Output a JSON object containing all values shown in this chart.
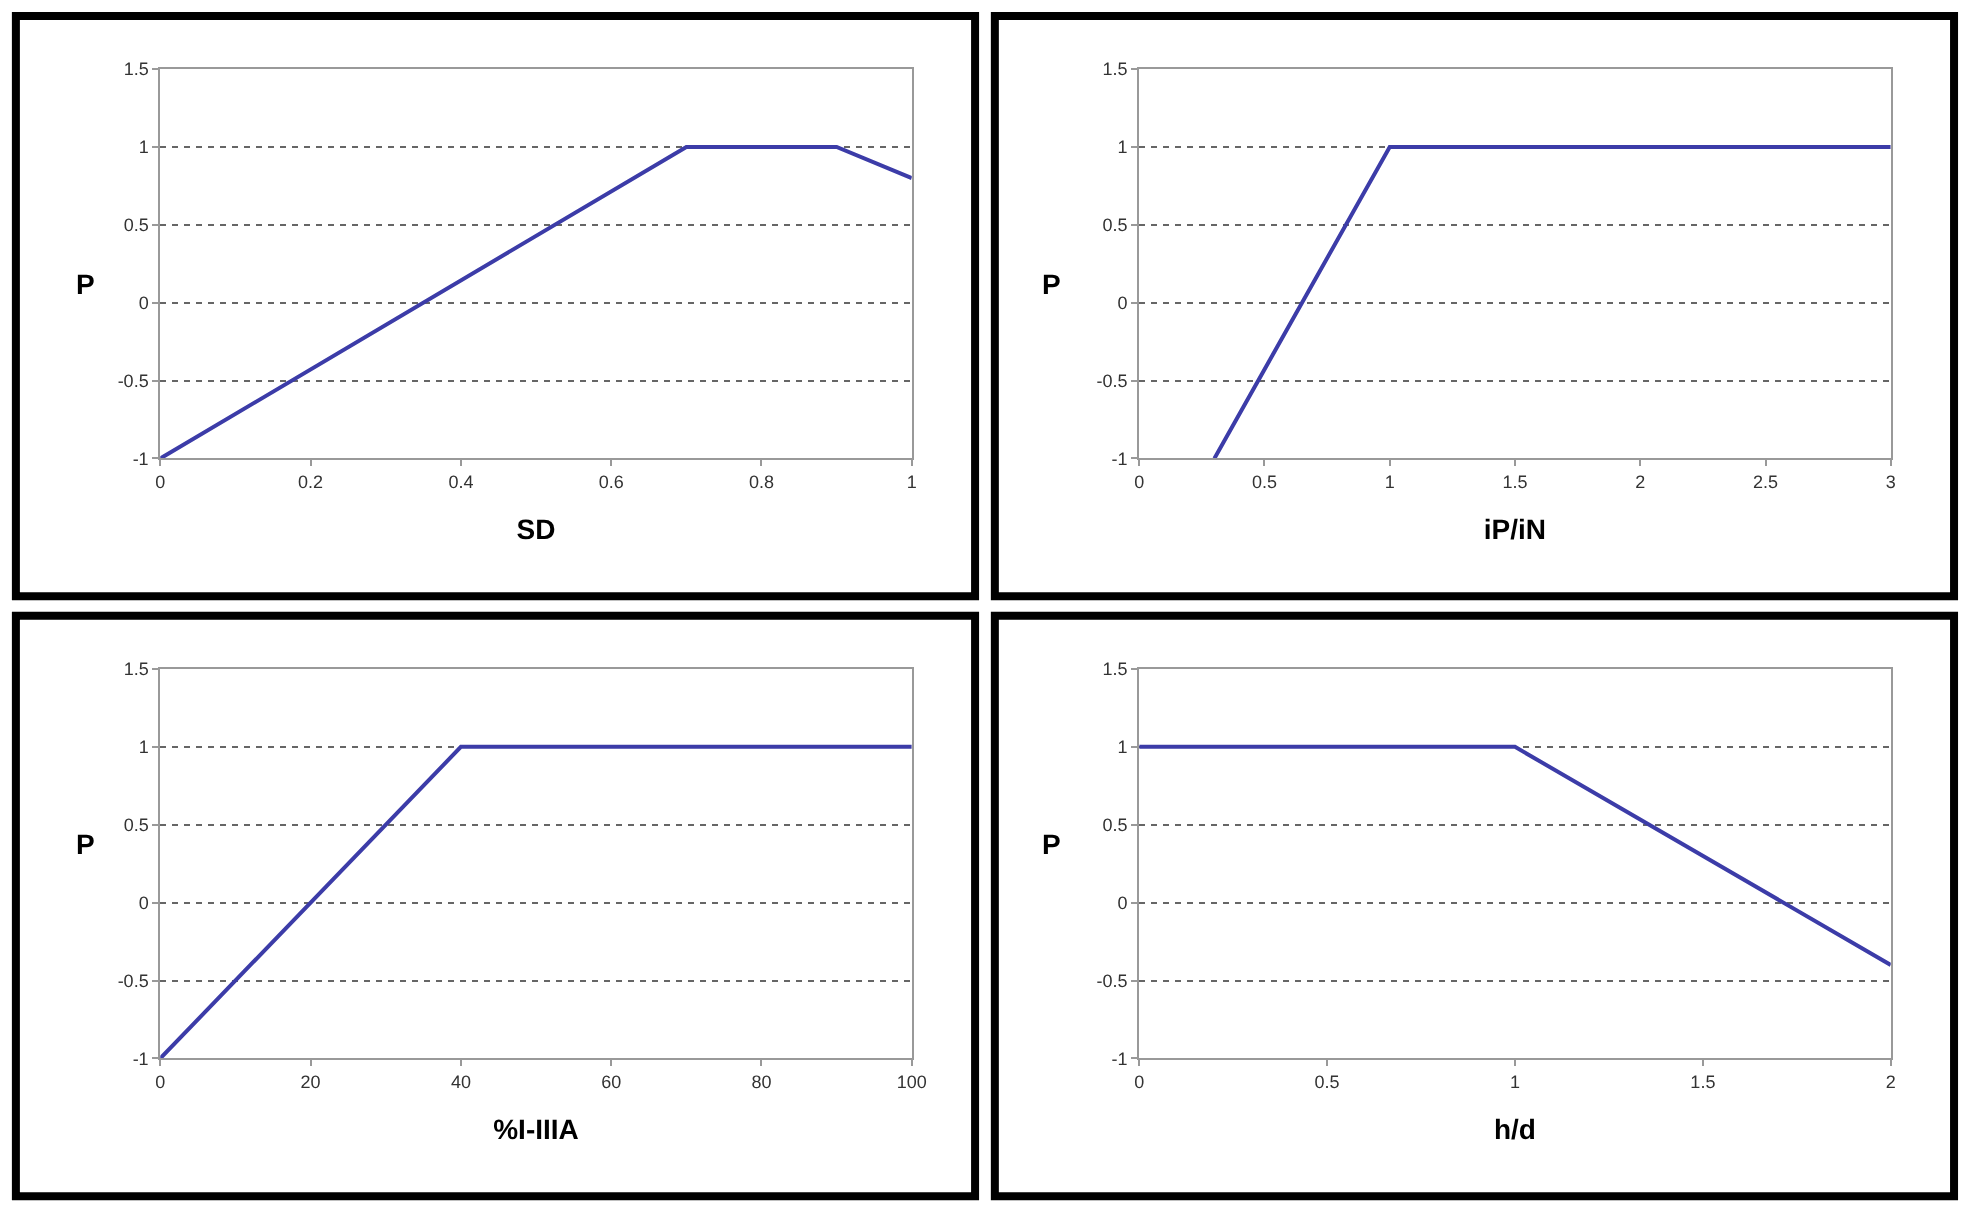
{
  "chart_data": [
    {
      "type": "line",
      "xlabel": "SD",
      "ylabel": "P",
      "x": [
        0,
        0.7,
        0.9,
        1
      ],
      "series": [
        {
          "color": "#3c3ca8",
          "values": [
            -1,
            1,
            1,
            0.8
          ]
        }
      ],
      "xlim": [
        0,
        1
      ],
      "xticks": [
        0,
        0.2,
        0.4,
        0.6,
        0.8,
        1
      ],
      "ylim": [
        -1,
        1.5
      ],
      "yticks": [
        -1,
        -0.5,
        0,
        0.5,
        1,
        1.5
      ],
      "grid": "y"
    },
    {
      "type": "line",
      "xlabel": "iP/iN",
      "ylabel": "P",
      "x": [
        0.3,
        1,
        3
      ],
      "series": [
        {
          "color": "#3c3ca8",
          "values": [
            -1,
            1,
            1
          ]
        }
      ],
      "xlim": [
        0,
        3
      ],
      "xticks": [
        0,
        0.5,
        1,
        1.5,
        2,
        2.5,
        3
      ],
      "ylim": [
        -1,
        1.5
      ],
      "yticks": [
        -1,
        -0.5,
        0,
        0.5,
        1,
        1.5
      ],
      "grid": "y"
    },
    {
      "type": "line",
      "xlabel": "%I-IIIA",
      "ylabel": "P",
      "x": [
        0,
        40,
        100
      ],
      "series": [
        {
          "color": "#3c3ca8",
          "values": [
            -1,
            1,
            1
          ]
        }
      ],
      "xlim": [
        0,
        100
      ],
      "xticks": [
        0,
        20,
        40,
        60,
        80,
        100
      ],
      "ylim": [
        -1,
        1.5
      ],
      "yticks": [
        -1,
        -0.5,
        0,
        0.5,
        1,
        1.5
      ],
      "grid": "y"
    },
    {
      "type": "line",
      "xlabel": "h/d",
      "ylabel": "P",
      "x": [
        0,
        1,
        2
      ],
      "series": [
        {
          "color": "#3c3ca8",
          "values": [
            1,
            1,
            -0.4
          ]
        }
      ],
      "xlim": [
        0,
        2
      ],
      "xticks": [
        0,
        0.5,
        1,
        1.5,
        2
      ],
      "ylim": [
        -1,
        1.5
      ],
      "yticks": [
        -1,
        -0.5,
        0,
        0.5,
        1,
        1.5
      ],
      "grid": "y"
    }
  ]
}
